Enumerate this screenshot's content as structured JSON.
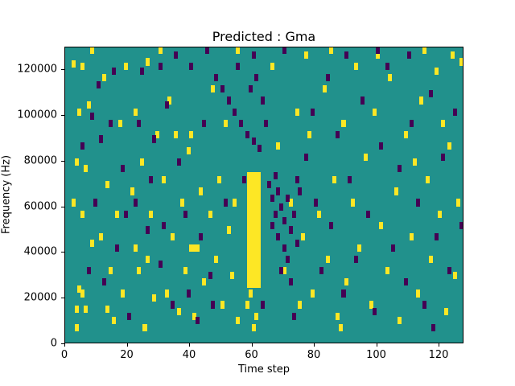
{
  "chart_data": {
    "type": "heatmap",
    "title": "Predicted : Gma",
    "xlabel": "Time step",
    "ylabel": "Frequency (Hz)",
    "xlim": [
      0,
      128
    ],
    "ylim": [
      0,
      130000
    ],
    "x_ticks": [
      0,
      20,
      40,
      60,
      80,
      100,
      120
    ],
    "y_ticks": [
      0,
      20000,
      40000,
      60000,
      80000,
      100000,
      120000
    ],
    "grid": false,
    "legend": null,
    "colors": {
      "background": "#21918c",
      "high": "#fde725",
      "low": "#440154"
    },
    "cell_size": {
      "t_width": 1.3,
      "f_height": 3250
    },
    "blocks": [
      {
        "x0": 58.5,
        "x1": 63,
        "y0": 24000,
        "y1": 75000,
        "value": "high"
      }
    ],
    "high_cells": [
      [
        2,
        121000
      ],
      [
        3,
        13000
      ],
      [
        3,
        5000
      ],
      [
        4,
        100000
      ],
      [
        4,
        22000
      ],
      [
        5,
        55000
      ],
      [
        5,
        20000
      ],
      [
        6,
        75000
      ],
      [
        6,
        13000
      ],
      [
        2,
        60000
      ],
      [
        7,
        103000
      ],
      [
        3,
        78000
      ],
      [
        8,
        42000
      ],
      [
        5,
        120000
      ],
      [
        8,
        127000
      ],
      [
        12,
        115000
      ],
      [
        13,
        68000
      ],
      [
        14,
        30000
      ],
      [
        15,
        8000
      ],
      [
        16,
        55000
      ],
      [
        17,
        95000
      ],
      [
        18,
        20000
      ],
      [
        19,
        120000
      ],
      [
        11,
        45000
      ],
      [
        13,
        13000
      ],
      [
        21,
        65000
      ],
      [
        22,
        100000
      ],
      [
        23,
        30000
      ],
      [
        24,
        78000
      ],
      [
        25,
        5000
      ],
      [
        26,
        122000
      ],
      [
        27,
        55000
      ],
      [
        28,
        18000
      ],
      [
        29,
        90000
      ],
      [
        22,
        40000
      ],
      [
        26,
        35000
      ],
      [
        30,
        127000
      ],
      [
        31,
        70000
      ],
      [
        32,
        20000
      ],
      [
        33,
        105000
      ],
      [
        34,
        45000
      ],
      [
        35,
        90000
      ],
      [
        36,
        12000
      ],
      [
        37,
        60000
      ],
      [
        38,
        30000
      ],
      [
        39,
        83000
      ],
      [
        40,
        40000
      ],
      [
        41,
        40000
      ],
      [
        42,
        40000
      ],
      [
        40,
        90000
      ],
      [
        43,
        65000
      ],
      [
        44,
        25000
      ],
      [
        41,
        10000
      ],
      [
        46,
        55000
      ],
      [
        47,
        110000
      ],
      [
        48,
        35000
      ],
      [
        49,
        70000
      ],
      [
        50,
        15000
      ],
      [
        51,
        95000
      ],
      [
        52,
        48000
      ],
      [
        53,
        28000
      ],
      [
        54,
        60000
      ],
      [
        55,
        8000
      ],
      [
        55,
        127000
      ],
      [
        58,
        15000
      ],
      [
        60,
        5000
      ],
      [
        61,
        10000
      ],
      [
        59,
        20000
      ],
      [
        66,
        120000
      ],
      [
        68,
        85000
      ],
      [
        70,
        30000
      ],
      [
        72,
        60000
      ],
      [
        74,
        100000
      ],
      [
        75,
        15000
      ],
      [
        76,
        45000
      ],
      [
        78,
        90000
      ],
      [
        79,
        20000
      ],
      [
        77,
        125000
      ],
      [
        81,
        55000
      ],
      [
        83,
        110000
      ],
      [
        84,
        35000
      ],
      [
        86,
        70000
      ],
      [
        87,
        10000
      ],
      [
        89,
        95000
      ],
      [
        90,
        25000
      ],
      [
        92,
        60000
      ],
      [
        93,
        120000
      ],
      [
        94,
        40000
      ],
      [
        88,
        5000
      ],
      [
        85,
        127000
      ],
      [
        96,
        80000
      ],
      [
        98,
        15000
      ],
      [
        99,
        100000
      ],
      [
        101,
        50000
      ],
      [
        103,
        30000
      ],
      [
        104,
        115000
      ],
      [
        106,
        65000
      ],
      [
        107,
        8000
      ],
      [
        109,
        90000
      ],
      [
        100,
        125000
      ],
      [
        111,
        45000
      ],
      [
        113,
        20000
      ],
      [
        114,
        105000
      ],
      [
        116,
        70000
      ],
      [
        117,
        35000
      ],
      [
        119,
        118000
      ],
      [
        120,
        55000
      ],
      [
        122,
        12000
      ],
      [
        123,
        85000
      ],
      [
        125,
        28000
      ],
      [
        126,
        60000
      ],
      [
        127,
        122000
      ],
      [
        124,
        125000
      ],
      [
        115,
        127000
      ],
      [
        112,
        78000
      ],
      [
        121,
        95000
      ]
    ],
    "low_cells": [
      [
        48,
        115000
      ],
      [
        50,
        110000
      ],
      [
        52,
        105000
      ],
      [
        54,
        100000
      ],
      [
        56,
        95000
      ],
      [
        58,
        90000
      ],
      [
        60,
        87000
      ],
      [
        62,
        84000
      ],
      [
        65,
        68000
      ],
      [
        66,
        62000
      ],
      [
        66,
        50000
      ],
      [
        67,
        55000
      ],
      [
        68,
        45000
      ],
      [
        68,
        65000
      ],
      [
        69,
        58000
      ],
      [
        70,
        40000
      ],
      [
        70,
        52000
      ],
      [
        71,
        62000
      ],
      [
        71,
        35000
      ],
      [
        72,
        48000
      ],
      [
        73,
        55000
      ],
      [
        74,
        42000
      ],
      [
        75,
        65000
      ],
      [
        69,
        30000
      ],
      [
        72,
        25000
      ],
      [
        73,
        10000
      ],
      [
        74,
        70000
      ],
      [
        67,
        72000
      ],
      [
        5,
        85000
      ],
      [
        7,
        30000
      ],
      [
        9,
        60000
      ],
      [
        10,
        112000
      ],
      [
        12,
        25000
      ],
      [
        14,
        95000
      ],
      [
        16,
        40000
      ],
      [
        18,
        75000
      ],
      [
        20,
        10000
      ],
      [
        22,
        60000
      ],
      [
        24,
        118000
      ],
      [
        26,
        48000
      ],
      [
        28,
        88000
      ],
      [
        30,
        33000
      ],
      [
        32,
        103000
      ],
      [
        34,
        15000
      ],
      [
        36,
        78000
      ],
      [
        38,
        55000
      ],
      [
        40,
        120000
      ],
      [
        42,
        8000
      ],
      [
        44,
        95000
      ],
      [
        46,
        28000
      ],
      [
        35,
        125000
      ],
      [
        55,
        120000
      ],
      [
        57,
        70000
      ],
      [
        59,
        110000
      ],
      [
        63,
        15000
      ],
      [
        77,
        80000
      ],
      [
        79,
        100000
      ],
      [
        80,
        60000
      ],
      [
        82,
        30000
      ],
      [
        84,
        115000
      ],
      [
        85,
        50000
      ],
      [
        87,
        90000
      ],
      [
        89,
        20000
      ],
      [
        91,
        70000
      ],
      [
        93,
        35000
      ],
      [
        95,
        105000
      ],
      [
        97,
        55000
      ],
      [
        99,
        12000
      ],
      [
        101,
        85000
      ],
      [
        103,
        120000
      ],
      [
        105,
        40000
      ],
      [
        107,
        75000
      ],
      [
        109,
        25000
      ],
      [
        111,
        95000
      ],
      [
        113,
        60000
      ],
      [
        115,
        15000
      ],
      [
        117,
        108000
      ],
      [
        119,
        45000
      ],
      [
        121,
        80000
      ],
      [
        123,
        30000
      ],
      [
        125,
        100000
      ],
      [
        127,
        50000
      ],
      [
        118,
        5000
      ],
      [
        45,
        127000
      ],
      [
        70,
        127000
      ],
      [
        100,
        127000
      ],
      [
        60,
        125000
      ],
      [
        30,
        120000
      ],
      [
        90,
        125000
      ],
      [
        110,
        125000
      ],
      [
        15,
        118000
      ],
      [
        8,
        98000
      ],
      [
        11,
        88000
      ],
      [
        19,
        55000
      ],
      [
        23,
        95000
      ],
      [
        27,
        70000
      ],
      [
        31,
        50000
      ],
      [
        39,
        20000
      ],
      [
        43,
        45000
      ],
      [
        47,
        15000
      ],
      [
        51,
        60000
      ],
      [
        64,
        95000
      ],
      [
        63,
        105000
      ],
      [
        61,
        115000
      ]
    ]
  }
}
